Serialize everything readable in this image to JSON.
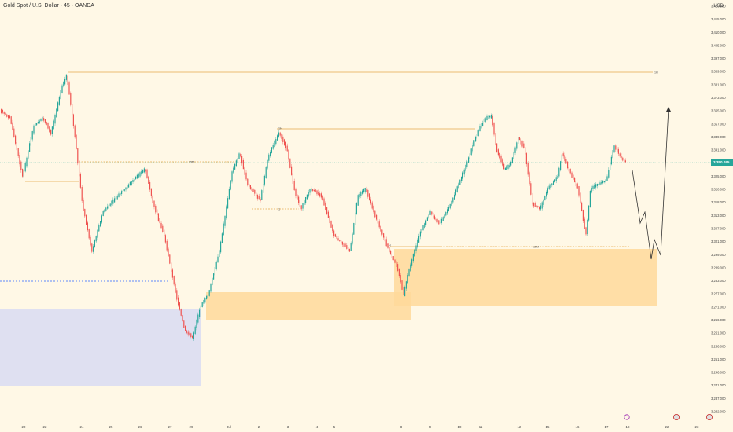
{
  "header": {
    "title": "Gold Spot / U.S. Dollar · 45 · OANDA",
    "currency": "USD"
  },
  "colors": {
    "background": "#fff8e6",
    "up": "#26a69a",
    "down": "#ef5350",
    "level_line": "#e5a84b",
    "demand_zone": "#ffd99a",
    "demand_zone_low": "#d9dcf2",
    "blue_line": "#2962ff",
    "price_badge": "#26a69a",
    "projection": "#333333"
  },
  "chart_data": {
    "type": "candlestick",
    "instrument": "XAUUSD",
    "timeframe": "45",
    "x_labels": [
      "20",
      "22",
      "24",
      "25",
      "26",
      "27",
      "29",
      "Jul",
      "2",
      "3",
      "4",
      "5",
      "8",
      "9",
      "10",
      "11",
      "12",
      "15",
      "16",
      "17",
      "18",
      "22",
      "23"
    ],
    "x_label_today": "20",
    "y_ticks": [
      "3,420.000",
      "3,415.000",
      "3,410.000",
      "3,405.000",
      "3,397.000",
      "3,389.000",
      "3,381.000",
      "3,373.000",
      "3,365.000",
      "3,357.000",
      "3,349.000",
      "3,341.000",
      "3,333.000",
      "3,325.000",
      "3,320.000",
      "3,318.000",
      "3,313.000",
      "3,307.000",
      "3,301.000",
      "3,299.000",
      "3,289.000",
      "3,283.000",
      "3,277.000",
      "3,271.000",
      "3,266.000",
      "3,261.000",
      "3,256.000",
      "3,251.000",
      "3,246.000",
      "3,241.000",
      "3,237.000",
      "3,232.000"
    ],
    "current_price": "3,350.095",
    "levels": [
      {
        "label": "1H",
        "style": "solid"
      },
      {
        "label": "1H",
        "style": "solid"
      },
      {
        "label": "15M",
        "style": "dashed"
      },
      {
        "label": "1",
        "style": "dashed"
      },
      {
        "label": "15M",
        "style": "dashed"
      },
      {
        "label": "1H",
        "style": "solid"
      },
      {
        "label": "1H",
        "style": "solid"
      },
      {
        "label": "",
        "style": "dashed-blue"
      }
    ],
    "zones": [
      {
        "kind": "demand",
        "color": "#d9dcf2"
      },
      {
        "kind": "demand",
        "color": "#ffd99a"
      },
      {
        "kind": "demand",
        "color": "#ffd99a"
      }
    ],
    "projection": "down-then-up"
  }
}
